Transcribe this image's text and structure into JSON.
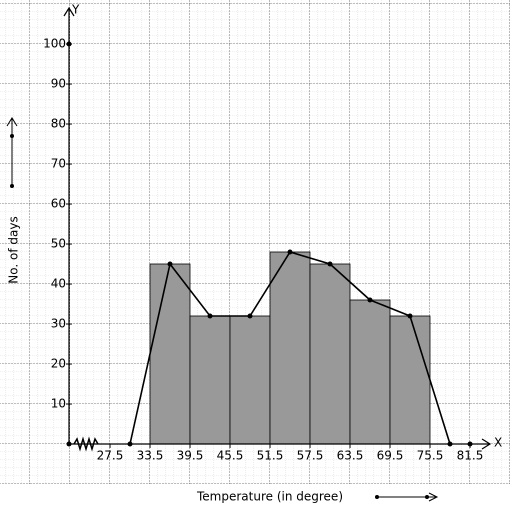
{
  "chart_data": {
    "type": "histogram",
    "x_label": "Temperature (in degree)",
    "y_label": "No. of days",
    "x_axis_name": "X",
    "y_axis_name": "Y",
    "bins": [
      33.5,
      39.5,
      45.5,
      51.5,
      57.5,
      63.5,
      69.5,
      75.5
    ],
    "values": [
      45,
      32,
      32,
      48,
      45,
      36,
      32
    ],
    "color": "#999999",
    "polygon": {
      "color": "#000000",
      "x": [
        30.5,
        36.5,
        42.5,
        48.5,
        54.5,
        60.5,
        66.5,
        72.5,
        78.5
      ],
      "values": [
        0,
        45,
        32,
        32,
        48,
        45,
        36,
        32,
        0
      ]
    },
    "xlim": [
      21.5,
      84.5
    ],
    "ylim": [
      -10,
      110
    ],
    "xticks": [
      27.5,
      33.5,
      39.5,
      45.5,
      51.5,
      57.5,
      63.5,
      69.5,
      75.5,
      81.5
    ],
    "yticks": [
      10,
      20,
      30,
      40,
      50,
      60,
      70,
      80,
      90,
      100
    ]
  }
}
